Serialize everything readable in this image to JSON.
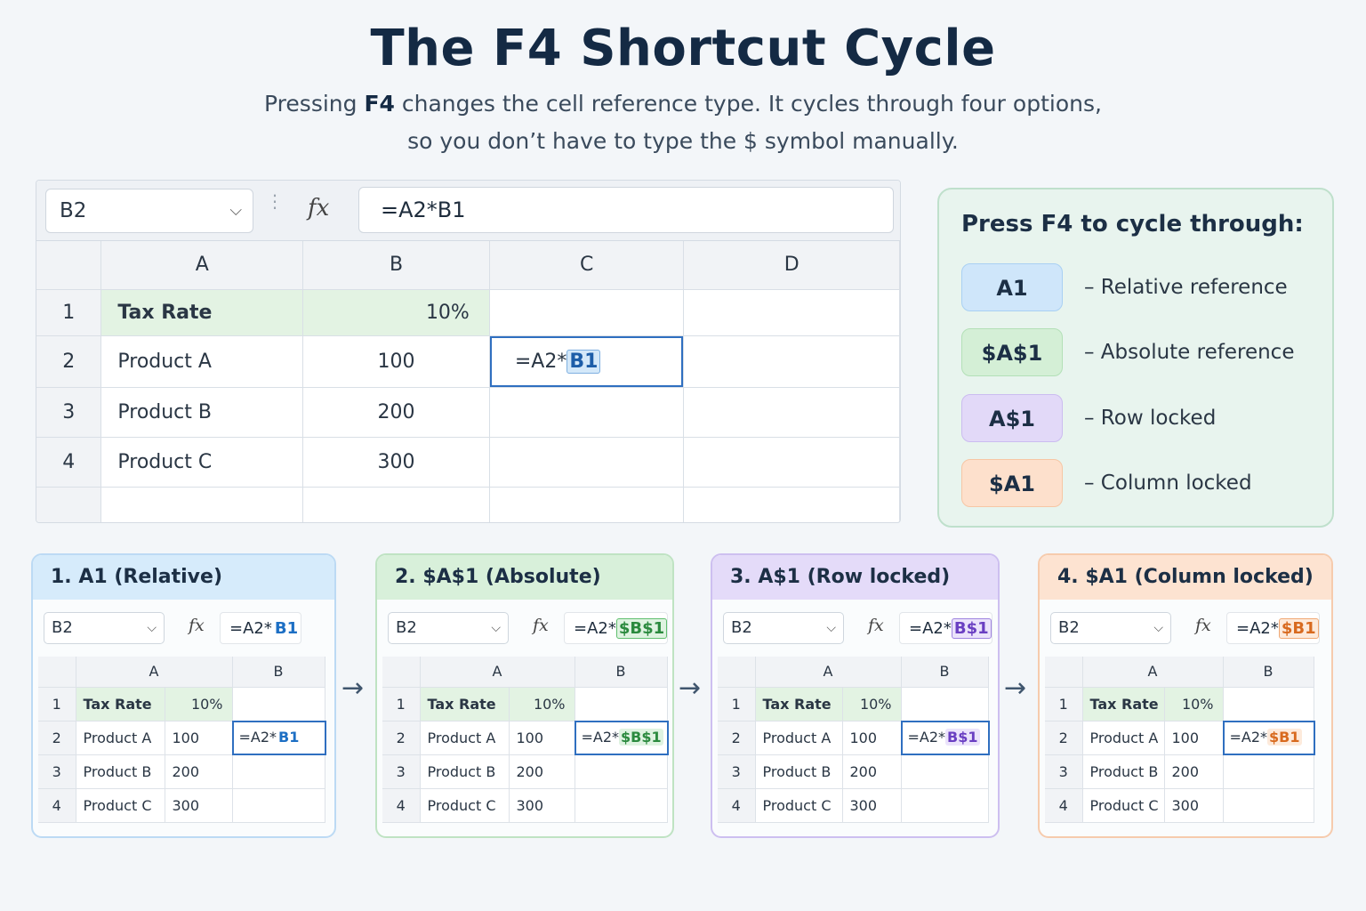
{
  "title": "The F4 Shortcut Cycle",
  "subtitle": {
    "line1_a": "Pressing ",
    "line1_b": "F4",
    "line1_c": " changes the cell reference type. It cycles through four options,",
    "line2": "so you don’t have to type the $ symbol manually."
  },
  "main_sheet": {
    "name_box": "B2",
    "fx": "fx",
    "formula": "=A2*B1",
    "columns": [
      "A",
      "B",
      "C",
      "D"
    ],
    "rows": [
      {
        "num": "1",
        "a": "Tax Rate",
        "b": "10%"
      },
      {
        "num": "2",
        "a": "Product A",
        "b": "100"
      },
      {
        "num": "3",
        "a": "Product B",
        "b": "200"
      },
      {
        "num": "4",
        "a": "Product C",
        "b": "300"
      }
    ],
    "active_cell": {
      "prefix": "=A2*",
      "ref": "B1"
    }
  },
  "legend": {
    "title": "Press F4 to cycle through:",
    "items": [
      {
        "ref": "A1",
        "desc": "– Relative reference",
        "color": "#cfe6fa",
        "border": "#a9d0f3"
      },
      {
        "ref": "$A$1",
        "desc": "– Absolute reference",
        "color": "#d4efd6",
        "border": "#b3e0b7"
      },
      {
        "ref": "A$1",
        "desc": "– Row locked",
        "color": "#e2d9f8",
        "border": "#cbbcf0"
      },
      {
        "ref": "$A1",
        "desc": "– Column locked",
        "color": "#fde0cc",
        "border": "#f6c6a4"
      }
    ]
  },
  "cards": [
    {
      "title": "1.  A1 (Relative)",
      "head_bg": "#d6ebfb",
      "border": "#bcdaf4",
      "formula_prefix": "=A2*",
      "formula_ref": "B1",
      "ref_color": "#1d6fc4",
      "ref_bg": "transparent",
      "ref_border": "transparent"
    },
    {
      "title": "2.  $A$1  (Absolute)",
      "head_bg": "#d8f0da",
      "border": "#bfe3c3",
      "formula_prefix": "=A2*",
      "formula_ref": "$B$1",
      "ref_color": "#2b8a3e",
      "ref_bg": "#dff3e1",
      "ref_border": "#5fbf6e"
    },
    {
      "title": "3.  A$1  (Row locked)",
      "head_bg": "#e4dbf9",
      "border": "#cdbff0",
      "formula_prefix": "=A2*",
      "formula_ref": "B$1",
      "ref_color": "#6a3fc2",
      "ref_bg": "#ebe3fb",
      "ref_border": "#9f84e0"
    },
    {
      "title": "4.  $A1  (Column locked)",
      "head_bg": "#fde3d1",
      "border": "#f6cbad",
      "formula_prefix": "=A2*",
      "formula_ref": "$B1",
      "ref_color": "#d86a1f",
      "ref_bg": "#fdeadb",
      "ref_border": "#f0a874"
    }
  ],
  "mini": {
    "name_box": "B2",
    "fx": "fx",
    "columns": [
      "A",
      "B"
    ],
    "rows": [
      {
        "num": "1",
        "a": "Tax Rate",
        "b": "10%"
      },
      {
        "num": "2",
        "a": "Product A",
        "b": "100"
      },
      {
        "num": "3",
        "a": "Product B",
        "b": "200"
      },
      {
        "num": "4",
        "a": "Product C",
        "b": "300"
      }
    ]
  },
  "arrows": [
    "→",
    "→",
    "→"
  ],
  "chevron": "⌵",
  "vdots": "⋮"
}
